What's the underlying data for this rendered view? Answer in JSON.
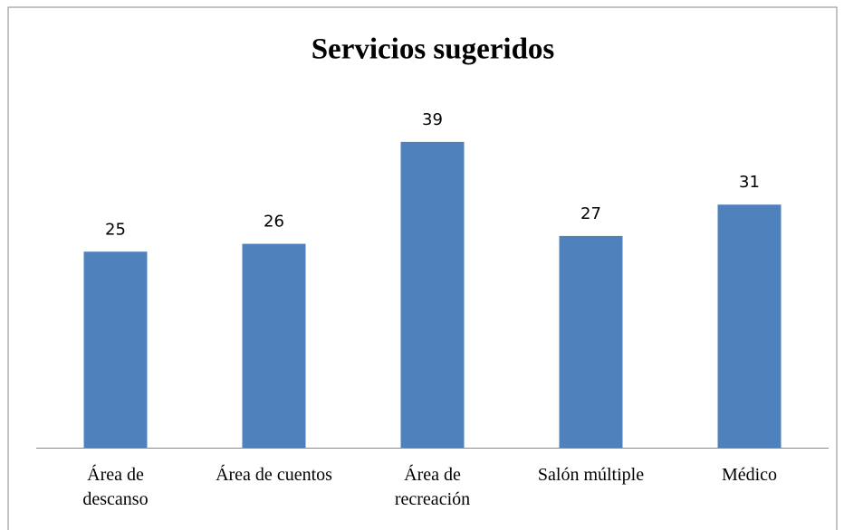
{
  "chart_data": {
    "type": "bar",
    "title": "Servicios sugeridos",
    "categories": [
      "Área de\ndescanso",
      "Área de cuentos",
      "Área de\nrecreación",
      "Salón múltiple",
      "Médico"
    ],
    "values": [
      25,
      26,
      39,
      27,
      31
    ],
    "color": "#4f81bd"
  }
}
